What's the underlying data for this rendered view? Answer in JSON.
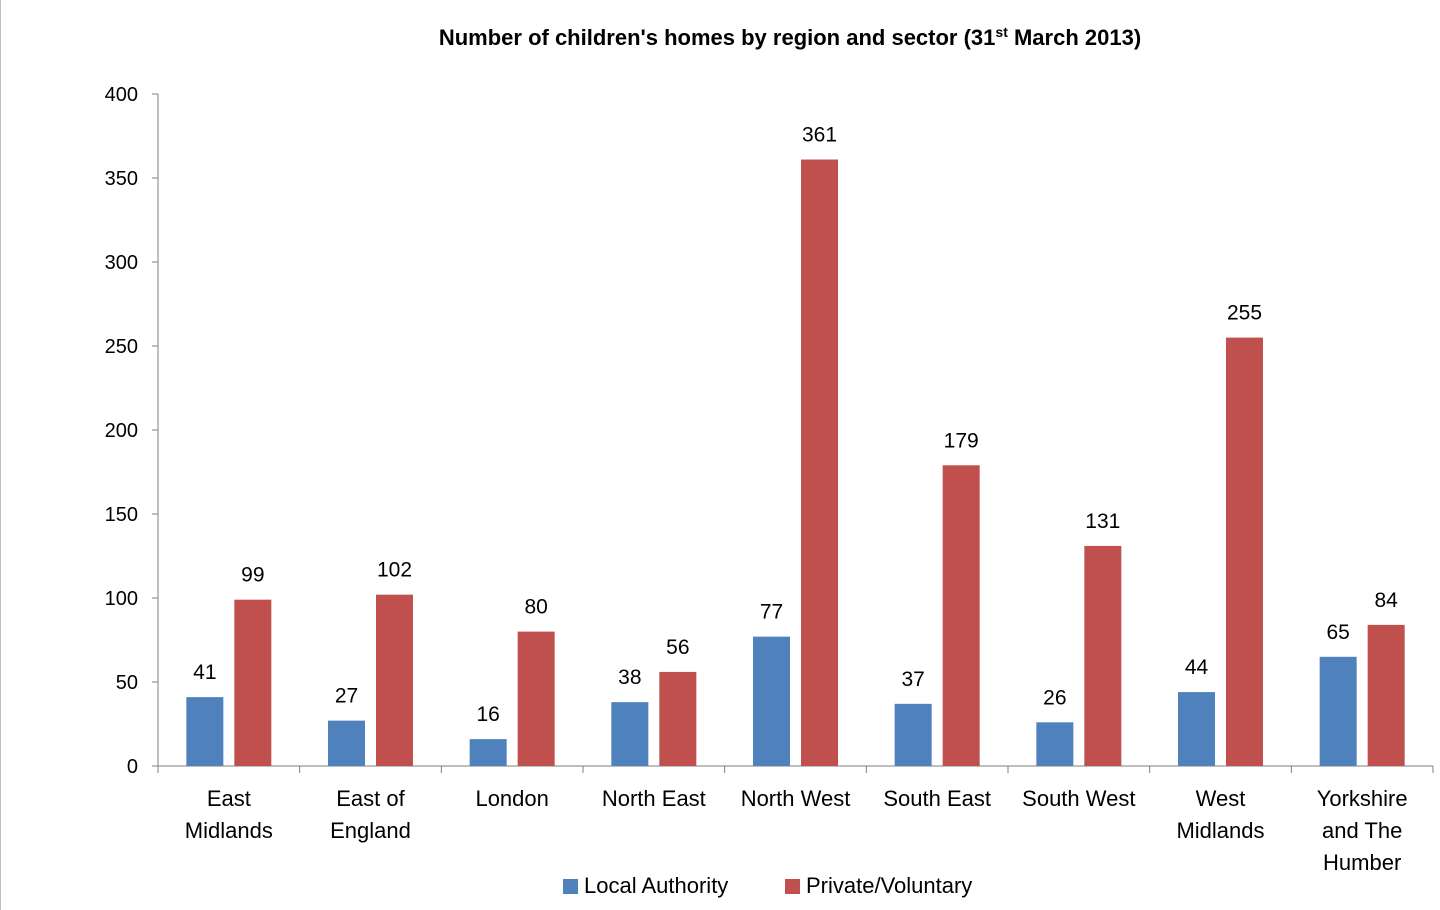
{
  "chart_data": {
    "type": "bar",
    "title": {
      "main": "Number of children's homes by  region and sector (31",
      "sup": "st",
      "end": " March 2013)"
    },
    "categories": [
      [
        "East",
        "Midlands"
      ],
      [
        "East of",
        "England"
      ],
      [
        "London"
      ],
      [
        "North East"
      ],
      [
        "North West"
      ],
      [
        "South East"
      ],
      [
        "South West"
      ],
      [
        "West",
        "Midlands"
      ],
      [
        "Yorkshire",
        "and The",
        "Humber"
      ]
    ],
    "series": [
      {
        "name": "Local Authority",
        "color": "#4f81bd",
        "values": [
          41,
          27,
          16,
          38,
          77,
          37,
          26,
          44,
          65
        ]
      },
      {
        "name": "Private/Voluntary",
        "color": "#c0504d",
        "values": [
          99,
          102,
          80,
          56,
          361,
          179,
          131,
          255,
          84
        ]
      }
    ],
    "ylim": [
      0,
      400
    ],
    "yticks": [
      0,
      50,
      100,
      150,
      200,
      250,
      300,
      350,
      400
    ],
    "ytick_labels": [
      "0",
      "50",
      "100",
      "150",
      "200",
      "250",
      "300",
      "350",
      "400"
    ],
    "grid": false,
    "legend": "bottom"
  }
}
